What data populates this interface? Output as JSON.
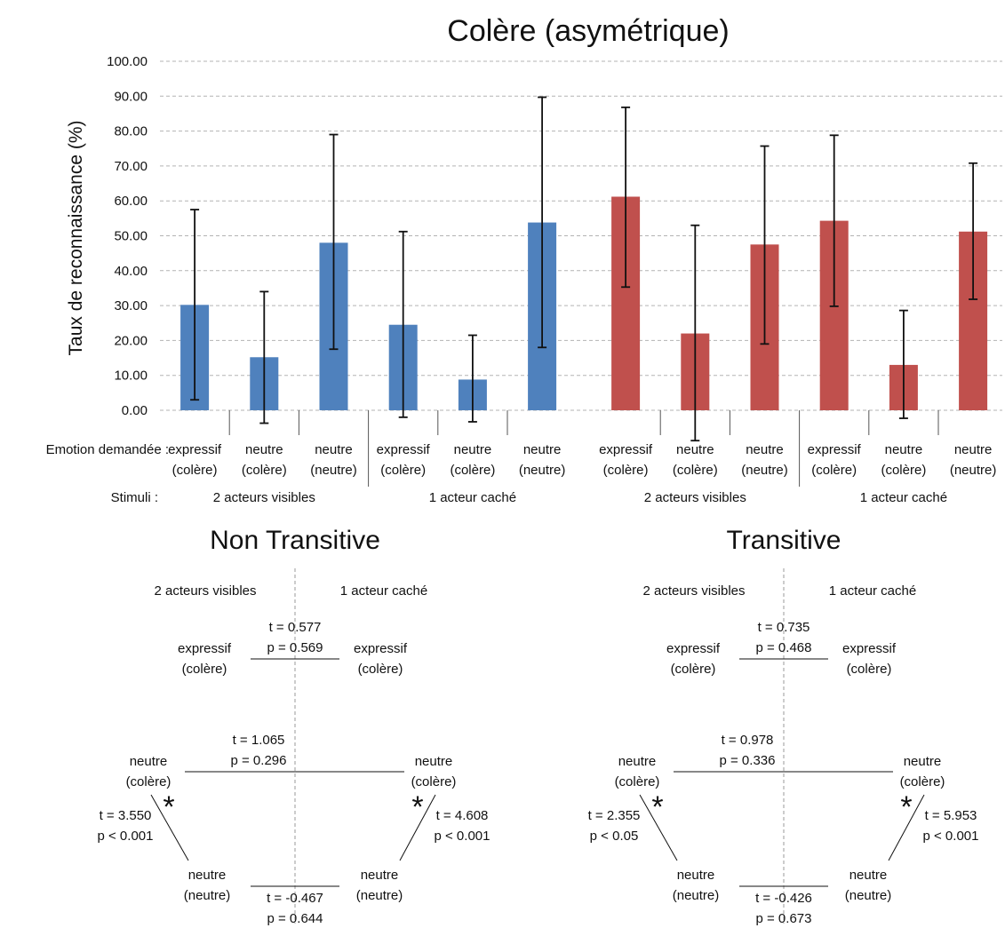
{
  "chart_data": {
    "type": "bar",
    "title": "Colère  (asymétrique)",
    "ylabel": "Taux de reconnaissance (%)",
    "ylim": [
      0,
      100
    ],
    "yticks": [
      "0.00",
      "10.00",
      "20.00",
      "30.00",
      "40.00",
      "50.00",
      "60.00",
      "70.00",
      "80.00",
      "90.00",
      "100.00"
    ],
    "grid": true,
    "row_labels": {
      "emotion": "Emotion demandée :",
      "stimuli": "Stimuli :"
    },
    "panels": [
      {
        "color": "#4f81bd",
        "groups": [
          "2 acteurs visibles",
          "1 acteur caché"
        ],
        "bars": [
          {
            "label": [
              "expressif",
              "(colère)"
            ],
            "value": 30.2,
            "err_low": 3.0,
            "err_high": 57.5
          },
          {
            "label": [
              "neutre",
              "(colère)"
            ],
            "value": 15.2,
            "err_low": -3.7,
            "err_high": 34.0
          },
          {
            "label": [
              "neutre",
              "(neutre)"
            ],
            "value": 48.0,
            "err_low": 17.5,
            "err_high": 79.0
          },
          {
            "label": [
              "expressif",
              "(colère)"
            ],
            "value": 24.5,
            "err_low": -2.0,
            "err_high": 51.2
          },
          {
            "label": [
              "neutre",
              "(colère)"
            ],
            "value": 8.8,
            "err_low": -3.3,
            "err_high": 21.5
          },
          {
            "label": [
              "neutre",
              "(neutre)"
            ],
            "value": 53.8,
            "err_low": 18.0,
            "err_high": 89.7
          }
        ]
      },
      {
        "color": "#c0504d",
        "groups": [
          "2 acteurs visibles",
          "1 acteur caché"
        ],
        "bars": [
          {
            "label": [
              "expressif",
              "(colère)"
            ],
            "value": 61.2,
            "err_low": 35.3,
            "err_high": 86.8
          },
          {
            "label": [
              "neutre",
              "(colère)"
            ],
            "value": 22.0,
            "err_low": -8.7,
            "err_high": 53.0
          },
          {
            "label": [
              "neutre",
              "(neutre)"
            ],
            "value": 47.5,
            "err_low": 19.0,
            "err_high": 75.7
          },
          {
            "label": [
              "expressif",
              "(colère)"
            ],
            "value": 54.3,
            "err_low": 29.8,
            "err_high": 78.8
          },
          {
            "label": [
              "neutre",
              "(colère)"
            ],
            "value": 13.0,
            "err_low": -2.3,
            "err_high": 28.6
          },
          {
            "label": [
              "neutre",
              "(neutre)"
            ],
            "value": 51.2,
            "err_low": 31.8,
            "err_high": 70.8
          }
        ]
      }
    ]
  },
  "comparisons": [
    {
      "title": "Non Transitive",
      "headers": [
        "2 acteurs visibles",
        "1 acteur caché"
      ],
      "nodes": {
        "left_expressif": [
          "expressif",
          "(colère)"
        ],
        "right_expressif": [
          "expressif",
          "(colère)"
        ],
        "left_neutre_colere": [
          "neutre",
          "(colère)"
        ],
        "right_neutre_colere": [
          "neutre",
          "(colère)"
        ],
        "left_neutre_neutre": [
          "neutre",
          "(neutre)"
        ],
        "right_neutre_neutre": [
          "neutre",
          "(neutre)"
        ]
      },
      "stats": {
        "expressif": {
          "t": "t = 0.577",
          "p": "p = 0.569"
        },
        "neutre_colere": {
          "t": "t = 1.065",
          "p": "p = 0.296"
        },
        "left_diag": {
          "t": "t = 3.550",
          "p": "p < 0.001",
          "sig": "*"
        },
        "right_diag": {
          "t": "t = 4.608",
          "p": "p < 0.001",
          "sig": "*"
        },
        "neutre_neutre": {
          "t": "t = -0.467",
          "p": "p = 0.644"
        }
      }
    },
    {
      "title": "Transitive",
      "headers": [
        "2 acteurs visibles",
        "1 acteur caché"
      ],
      "nodes": {
        "left_expressif": [
          "expressif",
          "(colère)"
        ],
        "right_expressif": [
          "expressif",
          "(colère)"
        ],
        "left_neutre_colere": [
          "neutre",
          "(colère)"
        ],
        "right_neutre_colere": [
          "neutre",
          "(colère)"
        ],
        "left_neutre_neutre": [
          "neutre",
          "(neutre)"
        ],
        "right_neutre_neutre": [
          "neutre",
          "(neutre)"
        ]
      },
      "stats": {
        "expressif": {
          "t": "t = 0.735",
          "p": "p = 0.468"
        },
        "neutre_colere": {
          "t": "t = 0.978",
          "p": "p = 0.336"
        },
        "left_diag": {
          "t": "t = 2.355",
          "p": "p < 0.05",
          "sig": "*"
        },
        "right_diag": {
          "t": "t = 5.953",
          "p": "p < 0.001",
          "sig": "*"
        },
        "neutre_neutre": {
          "t": "t = -0.426",
          "p": "p = 0.673"
        }
      }
    }
  ]
}
